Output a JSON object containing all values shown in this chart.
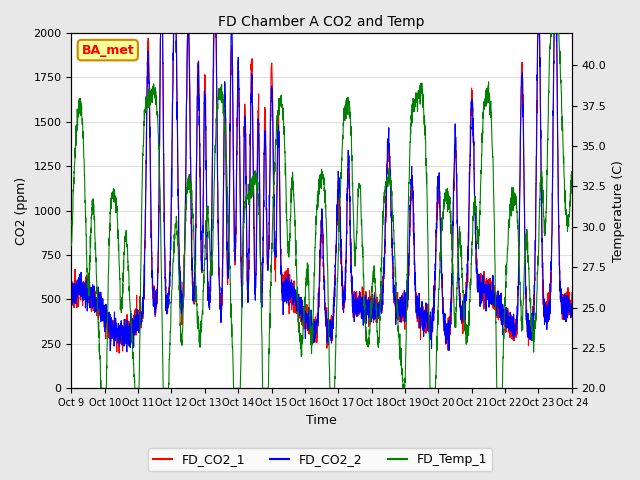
{
  "title": "FD Chamber A CO2 and Temp",
  "xlabel": "Time",
  "ylabel_left": "CO2 (ppm)",
  "ylabel_right": "Temperature (C)",
  "ylim_left": [
    0,
    2000
  ],
  "ylim_right": [
    20,
    42
  ],
  "xtick_labels": [
    "Oct 9",
    "Oct 10",
    "Oct 11",
    "Oct 12",
    "Oct 13",
    "Oct 14",
    "Oct 15",
    "Oct 16",
    "Oct 17",
    "Oct 18",
    "Oct 19",
    "Oct 20",
    "Oct 21",
    "Oct 22",
    "Oct 23",
    "Oct 24"
  ],
  "legend_labels": [
    "FD_CO2_1",
    "FD_CO2_2",
    "FD_Temp_1"
  ],
  "colors": [
    "red",
    "blue",
    "green"
  ],
  "annotation_text": "BA_met",
  "annotation_bg": "#FFFF99",
  "annotation_border": "#CC8800",
  "background_color": "#E8E8E8",
  "plot_bg": "#FFFFFF",
  "grid_color": "#D0D0D0",
  "title_fontsize": 10,
  "axis_fontsize": 9,
  "tick_fontsize": 8,
  "legend_fontsize": 9,
  "line_width": 0.8
}
